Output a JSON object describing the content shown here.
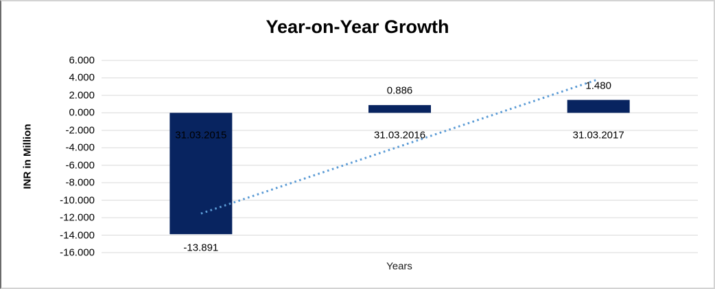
{
  "chart_data": {
    "type": "bar",
    "title": "Year-on-Year Growth",
    "xlabel": "Years",
    "ylabel": "INR in Million",
    "categories": [
      "31.03.2015",
      "31.03.2016",
      "31.03.2017"
    ],
    "values": [
      -13.891,
      0.886,
      1.48
    ],
    "data_labels": [
      "-13.891",
      "0.886",
      "1.480"
    ],
    "ytick_labels": [
      "6.000",
      "4.000",
      "2.000",
      "0.000",
      "-2.000",
      "-4.000",
      "-6.000",
      "-8.000",
      "-10.000",
      "-12.000",
      "-14.000",
      "-16.000"
    ],
    "ylim": [
      -16,
      6
    ],
    "grid": true,
    "legend": "none",
    "bar_color": "#082460",
    "gridline_color": "#d9d9d9",
    "trendline": {
      "type": "linear",
      "style": "dotted",
      "color": "#5B9BD5"
    }
  }
}
